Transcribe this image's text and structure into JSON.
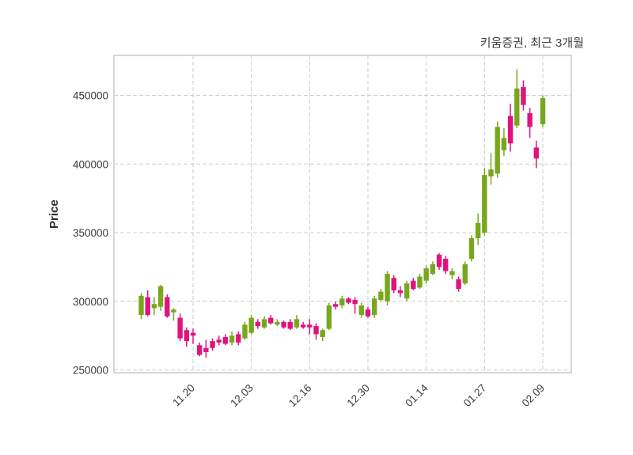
{
  "chart": {
    "title": "키움증권, 최근 3개월",
    "ylabel": "Price",
    "colors": {
      "up": "#78a71e",
      "down": "#e0137e",
      "grid": "#cccccc",
      "border": "#d7d7d7",
      "text": "#3a3a3a"
    }
  },
  "chart_data": {
    "type": "candlestick",
    "title": "키움증권, 최근 3개월",
    "ylabel": "Price",
    "grid": true,
    "ylim": [
      248000,
      479100
    ],
    "y_ticks": [
      250000,
      300000,
      350000,
      400000,
      450000
    ],
    "x_tick_labels": [
      "11.20",
      "12.03",
      "12.16",
      "12.30",
      "01.14",
      "01.27",
      "02.09"
    ],
    "x_tick_indices": [
      8,
      17,
      26,
      35,
      44,
      53,
      62
    ],
    "candles_format": [
      "open",
      "high",
      "low",
      "close"
    ],
    "candles": [
      [
        290000,
        306000,
        287000,
        304000
      ],
      [
        303000,
        308000,
        289000,
        290000
      ],
      [
        295000,
        303000,
        290000,
        298000
      ],
      [
        296000,
        312000,
        293000,
        311000
      ],
      [
        303000,
        305000,
        288000,
        289000
      ],
      [
        292000,
        295000,
        286000,
        294000
      ],
      [
        288000,
        291000,
        271000,
        273000
      ],
      [
        279000,
        281000,
        267000,
        271000
      ],
      [
        277000,
        280000,
        269000,
        275000
      ],
      [
        268000,
        270000,
        260000,
        261000
      ],
      [
        266000,
        272000,
        259000,
        263000
      ],
      [
        271000,
        273000,
        264000,
        266000
      ],
      [
        272000,
        275000,
        268000,
        270000
      ],
      [
        274000,
        276000,
        268000,
        269000
      ],
      [
        270000,
        278000,
        268000,
        275000
      ],
      [
        276000,
        278000,
        268000,
        270000
      ],
      [
        273000,
        285000,
        272000,
        283000
      ],
      [
        277000,
        290000,
        276000,
        288000
      ],
      [
        285000,
        287000,
        280000,
        282000
      ],
      [
        281000,
        289000,
        280000,
        287000
      ],
      [
        288000,
        290000,
        283000,
        284000
      ],
      [
        283000,
        287000,
        282000,
        285000
      ],
      [
        285000,
        286000,
        280000,
        281000
      ],
      [
        285000,
        287000,
        279000,
        280000
      ],
      [
        281000,
        290000,
        280000,
        287000
      ],
      [
        283000,
        285000,
        280000,
        281000
      ],
      [
        283000,
        287000,
        276000,
        281000
      ],
      [
        282000,
        284000,
        272000,
        276000
      ],
      [
        274000,
        280000,
        271000,
        279000
      ],
      [
        280000,
        299000,
        279000,
        297000
      ],
      [
        298000,
        300000,
        294000,
        296000
      ],
      [
        297000,
        304000,
        295000,
        302000
      ],
      [
        302000,
        303000,
        298000,
        299000
      ],
      [
        301000,
        303000,
        291000,
        298000
      ],
      [
        290000,
        299000,
        288000,
        297000
      ],
      [
        294000,
        296000,
        288000,
        289000
      ],
      [
        290000,
        304000,
        288000,
        302000
      ],
      [
        301000,
        309000,
        300000,
        307000
      ],
      [
        300000,
        322000,
        297000,
        320000
      ],
      [
        317000,
        319000,
        306000,
        308000
      ],
      [
        308000,
        311000,
        303000,
        306000
      ],
      [
        302000,
        315000,
        300000,
        313000
      ],
      [
        315000,
        317000,
        308000,
        309000
      ],
      [
        310000,
        320000,
        309000,
        318000
      ],
      [
        315000,
        326000,
        313000,
        324000
      ],
      [
        320000,
        329000,
        319000,
        327000
      ],
      [
        334000,
        335000,
        323000,
        325000
      ],
      [
        331000,
        333000,
        320000,
        322000
      ],
      [
        319000,
        324000,
        316000,
        322000
      ],
      [
        316000,
        318000,
        307000,
        309000
      ],
      [
        313000,
        329000,
        312000,
        327000
      ],
      [
        331000,
        348000,
        329000,
        346000
      ],
      [
        346000,
        364000,
        341000,
        357000
      ],
      [
        350000,
        397000,
        348000,
        392000
      ],
      [
        391000,
        408000,
        385000,
        396000
      ],
      [
        393000,
        431000,
        390000,
        427000
      ],
      [
        410000,
        426000,
        406000,
        419000
      ],
      [
        435000,
        444000,
        409000,
        415000
      ],
      [
        428000,
        469000,
        426000,
        455000
      ],
      [
        456000,
        461000,
        439000,
        443000
      ],
      [
        437000,
        441000,
        419000,
        427000
      ],
      [
        412000,
        417000,
        397000,
        404000
      ],
      [
        429000,
        450000,
        427000,
        448000
      ]
    ]
  }
}
